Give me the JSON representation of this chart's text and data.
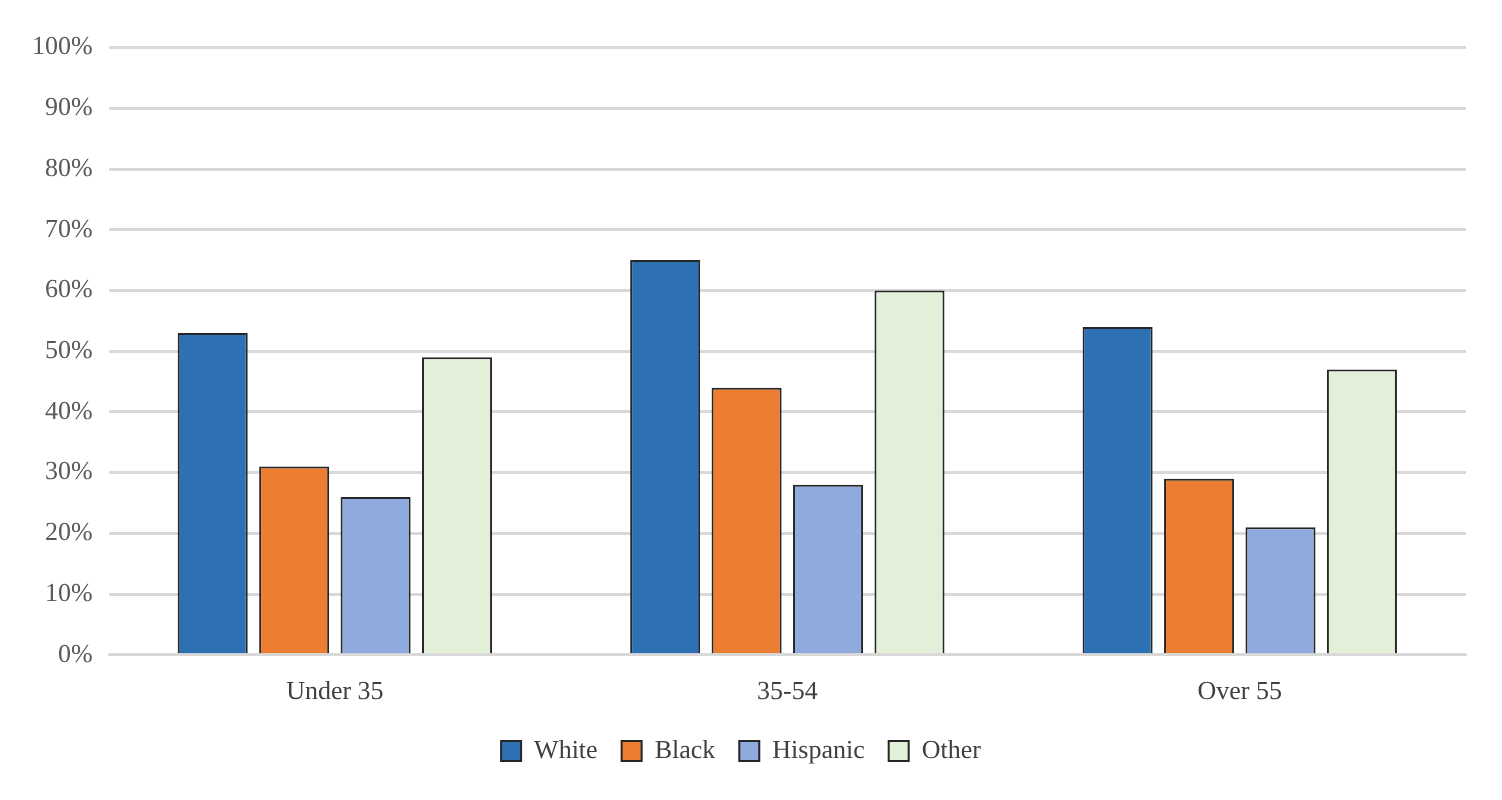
{
  "chart_data": {
    "type": "bar",
    "categories": [
      "Under 35",
      "35-54",
      "Over 55"
    ],
    "series": [
      {
        "name": "White",
        "color": "#2e70b4",
        "values": [
          53,
          65,
          54
        ]
      },
      {
        "name": "Black",
        "color": "#ed7d31",
        "values": [
          31,
          44,
          29
        ]
      },
      {
        "name": "Hispanic",
        "color": "#8faadc",
        "values": [
          26,
          28,
          21
        ]
      },
      {
        "name": "Other",
        "color": "#e2efd9",
        "values": [
          49,
          60,
          47
        ]
      }
    ],
    "ylim": [
      0,
      100
    ],
    "yticks": [
      {
        "value": 0,
        "label": "0%"
      },
      {
        "value": 10,
        "label": "10%"
      },
      {
        "value": 20,
        "label": "20%"
      },
      {
        "value": 30,
        "label": "30%"
      },
      {
        "value": 40,
        "label": "40%"
      },
      {
        "value": 50,
        "label": "50%"
      },
      {
        "value": 60,
        "label": "60%"
      },
      {
        "value": 70,
        "label": "70%"
      },
      {
        "value": 80,
        "label": "80%"
      },
      {
        "value": 90,
        "label": "90%"
      },
      {
        "value": 100,
        "label": "100%"
      }
    ],
    "grid": "y",
    "legend": "bottom"
  }
}
